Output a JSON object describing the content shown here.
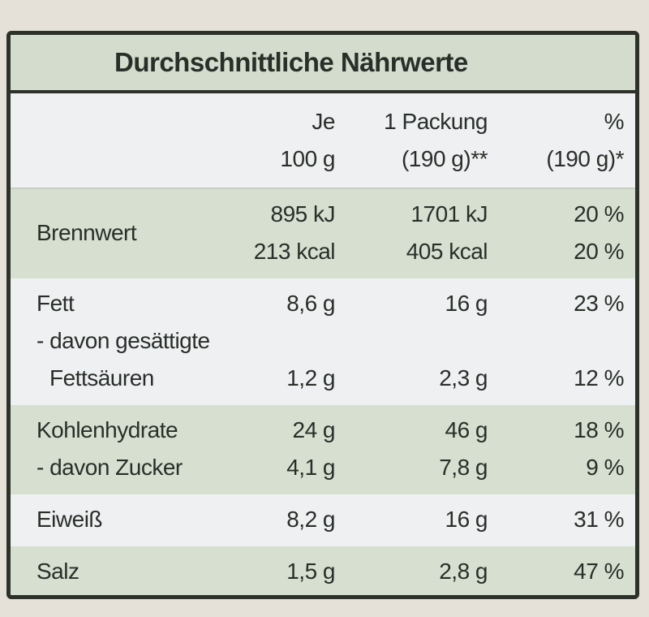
{
  "title": "Durchschnittliche Nährwerte",
  "header": [
    [
      "Je",
      "100 g"
    ],
    [
      "1 Packung",
      "(190 g)**"
    ],
    [
      "%",
      "(190 g)*"
    ]
  ],
  "groups": [
    {
      "rows": [
        {
          "label": [
            "Brennwert"
          ],
          "cells": [
            [
              "895 kJ",
              "213 kcal"
            ],
            [
              "1701 kJ",
              "405 kcal"
            ],
            [
              "20 %",
              "20 %"
            ]
          ]
        }
      ]
    },
    {
      "rows": [
        {
          "label": [
            "Fett"
          ],
          "cells": [
            [
              "8,6 g"
            ],
            [
              "16 g"
            ],
            [
              "23 %"
            ]
          ]
        },
        {
          "label": [
            "- davon gesättigte",
            "Fettsäuren"
          ],
          "cells": [
            [
              "1,2 g"
            ],
            [
              "2,3 g"
            ],
            [
              "12 %"
            ]
          ]
        }
      ]
    },
    {
      "rows": [
        {
          "label": [
            "Kohlenhydrate"
          ],
          "cells": [
            [
              "24 g"
            ],
            [
              "46 g"
            ],
            [
              "18 %"
            ]
          ]
        },
        {
          "label": [
            "- davon Zucker"
          ],
          "cells": [
            [
              "4,1 g"
            ],
            [
              "7,8 g"
            ],
            [
              "9 %"
            ]
          ]
        }
      ]
    },
    {
      "rows": [
        {
          "label": [
            "Eiweiß"
          ],
          "cells": [
            [
              "8,2 g"
            ],
            [
              "16 g"
            ],
            [
              "31 %"
            ]
          ]
        }
      ]
    },
    {
      "rows": [
        {
          "label": [
            "Salz"
          ],
          "cells": [
            [
              "1,5 g"
            ],
            [
              "2,8 g"
            ],
            [
              "47 %"
            ]
          ]
        }
      ]
    }
  ]
}
